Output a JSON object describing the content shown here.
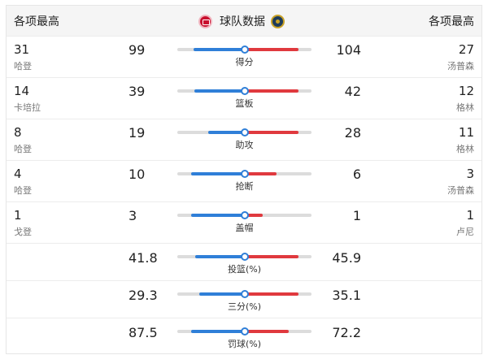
{
  "header": {
    "left_title": "各项最高",
    "center_title": "球队数据",
    "right_title": "各项最高",
    "team_a_logo": "team-a-logo",
    "team_b_logo": "team-b-logo"
  },
  "colors": {
    "team_a_bar": "#2f7fd8",
    "team_b_bar": "#e0393e",
    "track": "#dcdcdc"
  },
  "stats": [
    {
      "label": "得分",
      "team_a": "99",
      "team_b": "104",
      "left_leader_value": "31",
      "left_leader_name": "哈登",
      "right_leader_value": "27",
      "right_leader_name": "汤普森"
    },
    {
      "label": "篮板",
      "team_a": "39",
      "team_b": "42",
      "left_leader_value": "14",
      "left_leader_name": "卡培拉",
      "right_leader_value": "12",
      "right_leader_name": "格林"
    },
    {
      "label": "助攻",
      "team_a": "19",
      "team_b": "28",
      "left_leader_value": "8",
      "left_leader_name": "哈登",
      "right_leader_value": "11",
      "right_leader_name": "格林"
    },
    {
      "label": "抢断",
      "team_a": "10",
      "team_b": "6",
      "left_leader_value": "4",
      "left_leader_name": "哈登",
      "right_leader_value": "3",
      "right_leader_name": "汤普森"
    },
    {
      "label": "盖帽",
      "team_a": "3",
      "team_b": "1",
      "left_leader_value": "1",
      "left_leader_name": "戈登",
      "right_leader_value": "1",
      "right_leader_name": "卢尼"
    },
    {
      "label": "投篮(%)",
      "team_a": "41.8",
      "team_b": "45.9"
    },
    {
      "label": "三分(%)",
      "team_a": "29.3",
      "team_b": "35.1"
    },
    {
      "label": "罚球(%)",
      "team_a": "87.5",
      "team_b": "72.2"
    }
  ]
}
